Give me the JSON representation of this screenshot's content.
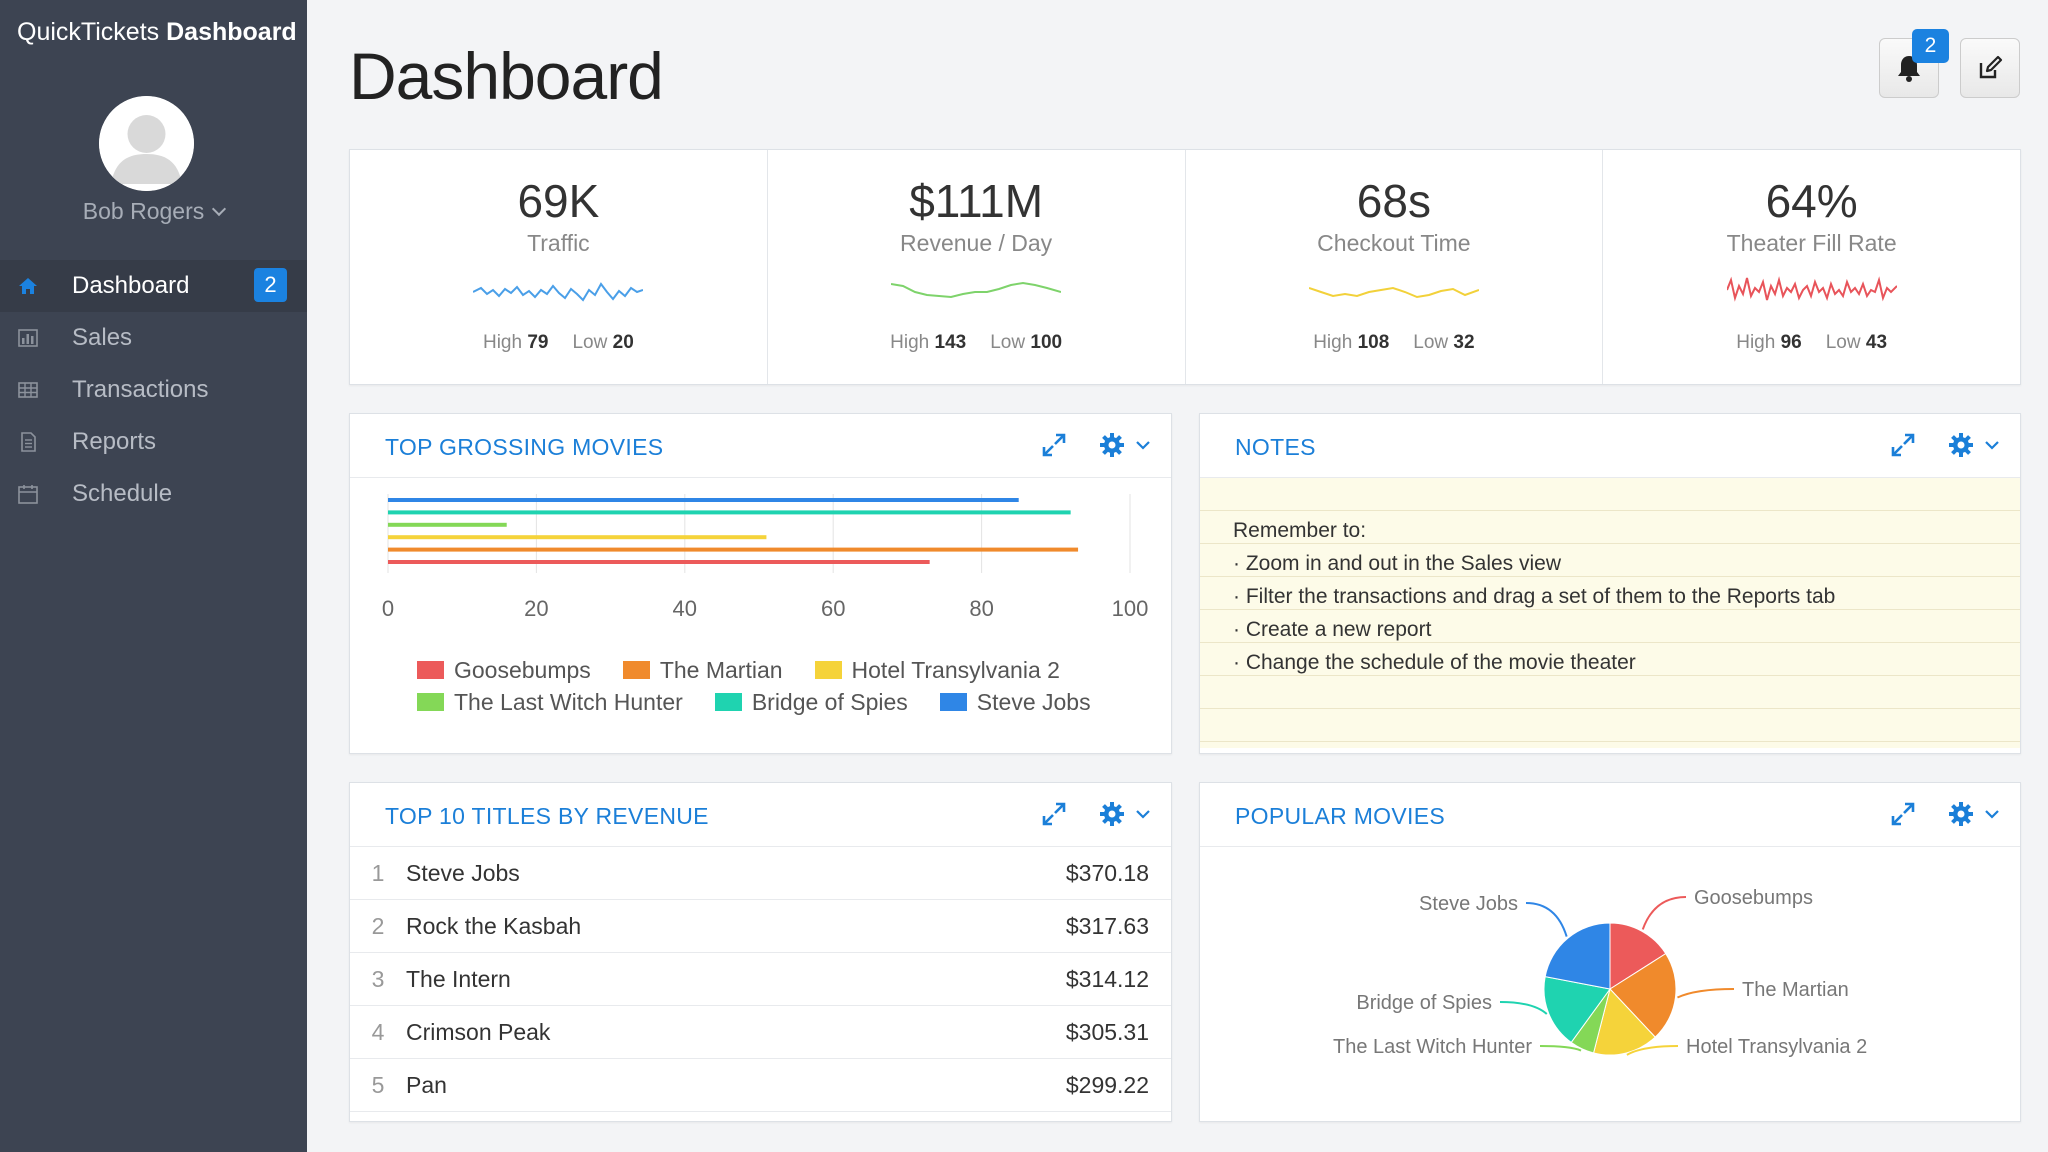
{
  "app": {
    "brand_light": "QuickTickets",
    "brand_bold": "Dashboard"
  },
  "user": {
    "name": "Bob Rogers"
  },
  "sidebar": {
    "items": [
      {
        "label": "Dashboard",
        "icon": "home-icon",
        "badge": "2",
        "active": true
      },
      {
        "label": "Sales",
        "icon": "bar-chart-icon"
      },
      {
        "label": "Transactions",
        "icon": "table-icon"
      },
      {
        "label": "Reports",
        "icon": "document-icon"
      },
      {
        "label": "Schedule",
        "icon": "calendar-icon"
      }
    ]
  },
  "header": {
    "title": "Dashboard",
    "notification_count": "2",
    "bell_icon": "bell-icon",
    "edit_icon": "edit-icon"
  },
  "kpis": [
    {
      "value": "69K",
      "label": "Traffic",
      "high_label": "High",
      "high": "79",
      "low_label": "Low",
      "low": "20",
      "color": "#4a9fe8"
    },
    {
      "value": "$111M",
      "label": "Revenue / Day",
      "high_label": "High",
      "high": "143",
      "low_label": "Low",
      "low": "100",
      "color": "#7ed36b"
    },
    {
      "value": "68s",
      "label": "Checkout Time",
      "high_label": "High",
      "high": "108",
      "low_label": "Low",
      "low": "32",
      "color": "#f2d13a"
    },
    {
      "value": "64%",
      "label": "Theater Fill Rate",
      "high_label": "High",
      "high": "96",
      "low_label": "Low",
      "low": "43",
      "color": "#e8545a"
    }
  ],
  "panels": {
    "top_grossing": {
      "title": "TOP GROSSING MOVIES"
    },
    "notes": {
      "title": "NOTES",
      "lines": [
        "Remember to:",
        "· Zoom in and out in the Sales view",
        "· Filter the transactions and drag a set of them to the Reports tab",
        "· Create a new report",
        "· Change the schedule of the movie theater"
      ]
    },
    "top_titles": {
      "title": "TOP 10 TITLES BY REVENUE",
      "rows": [
        {
          "rank": "1",
          "title": "Steve Jobs",
          "revenue": "$370.18"
        },
        {
          "rank": "2",
          "title": "Rock the Kasbah",
          "revenue": "$317.63"
        },
        {
          "rank": "3",
          "title": "The Intern",
          "revenue": "$314.12"
        },
        {
          "rank": "4",
          "title": "Crimson Peak",
          "revenue": "$305.31"
        },
        {
          "rank": "5",
          "title": "Pan",
          "revenue": "$299.22"
        }
      ]
    },
    "popular": {
      "title": "POPULAR MOVIES"
    }
  },
  "chart_data": [
    {
      "type": "bar",
      "orientation": "horizontal",
      "title": "TOP GROSSING MOVIES",
      "xlim": [
        0,
        100
      ],
      "x_ticks": [
        "0",
        "20",
        "40",
        "60",
        "80",
        "100"
      ],
      "grid": true,
      "legend_position": "bottom",
      "series": [
        {
          "name": "Steve Jobs",
          "value": 85,
          "color": "#2f86e6"
        },
        {
          "name": "Bridge of Spies",
          "value": 92,
          "color": "#1fd3b0"
        },
        {
          "name": "The Last Witch Hunter",
          "value": 16,
          "color": "#84d857"
        },
        {
          "name": "Hotel Transylvania 2",
          "value": 51,
          "color": "#f5d33a"
        },
        {
          "name": "The Martian",
          "value": 93,
          "color": "#f08a2c"
        },
        {
          "name": "Goosebumps",
          "value": 73,
          "color": "#ec5a5a"
        }
      ],
      "legend_rows": [
        [
          "Goosebumps",
          "The Martian",
          "Hotel Transylvania 2"
        ],
        [
          "The Last Witch Hunter",
          "Bridge of Spies",
          "Steve Jobs"
        ]
      ]
    },
    {
      "type": "pie",
      "title": "POPULAR MOVIES",
      "slices": [
        {
          "name": "Goosebumps",
          "value": 16,
          "color": "#ec5a5a"
        },
        {
          "name": "The Martian",
          "value": 22,
          "color": "#f08a2c"
        },
        {
          "name": "Hotel Transylvania 2",
          "value": 16,
          "color": "#f5d33a"
        },
        {
          "name": "The Last Witch Hunter",
          "value": 6,
          "color": "#84d857"
        },
        {
          "name": "Bridge of Spies",
          "value": 18,
          "color": "#1fd3b0"
        },
        {
          "name": "Steve Jobs",
          "value": 22,
          "color": "#2f86e6"
        }
      ]
    }
  ]
}
